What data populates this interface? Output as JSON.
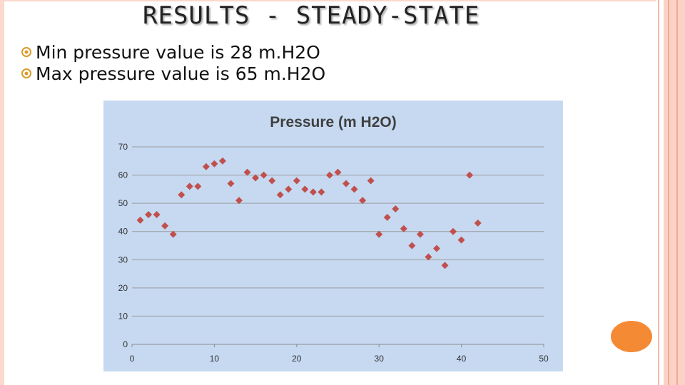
{
  "slide": {
    "title": "RESULTS - STEADY-STATE",
    "bullets": [
      "Min pressure value is 28 m.H2O",
      "Max pressure value is 65 m.H2O"
    ],
    "bullet_icon": "target-bullet-icon",
    "accent_color": "#f58a35",
    "stripe_color": "#fbd3c6"
  },
  "chart_data": {
    "type": "scatter",
    "title": "Pressure (m H2O)",
    "xlim": [
      0,
      50
    ],
    "ylim": [
      0,
      70
    ],
    "xticks": [
      0,
      10,
      20,
      30,
      40,
      50
    ],
    "yticks": [
      0,
      10,
      20,
      30,
      40,
      50,
      60,
      70
    ],
    "grid": true,
    "legend": "none",
    "marker_color": "#c0504d",
    "plot_background": "#c6d9f1",
    "series": [
      {
        "x": [
          1,
          2,
          3,
          4,
          5,
          6,
          7,
          8,
          9,
          10,
          11,
          12,
          13,
          14,
          15,
          16,
          17,
          18,
          19,
          20,
          21,
          22,
          23,
          24,
          25,
          26,
          27,
          28,
          29,
          30,
          31,
          32,
          33,
          34,
          35,
          36,
          37,
          38,
          39,
          40,
          41,
          42
        ],
        "y": [
          44,
          46,
          46,
          42,
          39,
          53,
          56,
          56,
          63,
          64,
          65,
          57,
          51,
          61,
          59,
          60,
          58,
          53,
          55,
          58,
          55,
          54,
          54,
          60,
          61,
          57,
          55,
          51,
          58,
          39,
          45,
          48,
          41,
          35,
          39,
          31,
          34,
          28,
          40,
          37,
          60,
          43
        ]
      }
    ]
  }
}
